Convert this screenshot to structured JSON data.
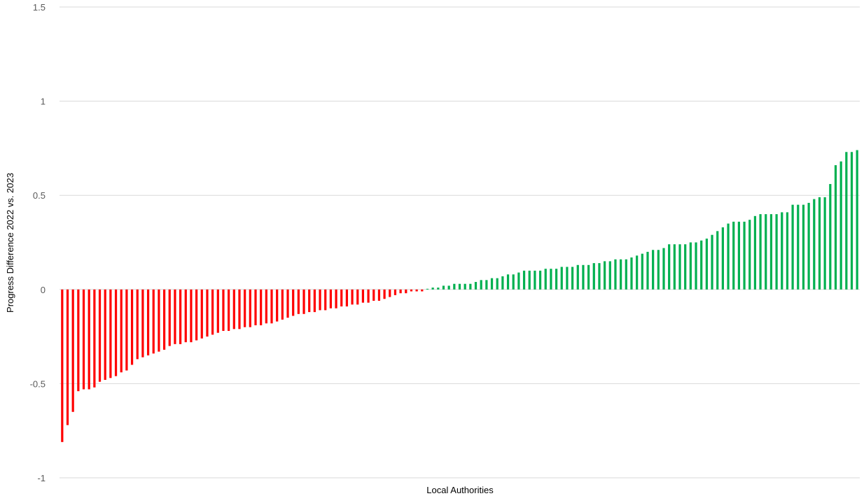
{
  "chart_data": {
    "type": "bar",
    "title": "",
    "xlabel": "Local Authorities",
    "ylabel": "Progress Difference 2022 vs. 2023",
    "ylim": [
      -1,
      1.5
    ],
    "yticks": [
      1.5,
      1,
      0.5,
      0,
      -0.5,
      -1
    ],
    "ytick_labels": [
      "1.5",
      "1",
      "0.5",
      "0",
      "-0.5",
      "-1"
    ],
    "grid": true,
    "legend": "none",
    "colors": {
      "negative": "#ff0000",
      "positive": "#00b050",
      "grid": "#d9d9d9"
    },
    "values": [
      -0.81,
      -0.72,
      -0.65,
      -0.54,
      -0.53,
      -0.53,
      -0.52,
      -0.49,
      -0.48,
      -0.47,
      -0.46,
      -0.44,
      -0.43,
      -0.4,
      -0.37,
      -0.36,
      -0.35,
      -0.34,
      -0.33,
      -0.32,
      -0.3,
      -0.29,
      -0.29,
      -0.28,
      -0.28,
      -0.27,
      -0.26,
      -0.25,
      -0.24,
      -0.23,
      -0.22,
      -0.22,
      -0.21,
      -0.21,
      -0.2,
      -0.2,
      -0.19,
      -0.19,
      -0.18,
      -0.18,
      -0.17,
      -0.16,
      -0.15,
      -0.14,
      -0.13,
      -0.13,
      -0.12,
      -0.12,
      -0.11,
      -0.11,
      -0.1,
      -0.1,
      -0.09,
      -0.09,
      -0.08,
      -0.08,
      -0.07,
      -0.07,
      -0.06,
      -0.06,
      -0.05,
      -0.04,
      -0.03,
      -0.02,
      -0.02,
      -0.01,
      -0.01,
      -0.01,
      0.0,
      0.01,
      0.01,
      0.02,
      0.02,
      0.03,
      0.03,
      0.03,
      0.03,
      0.04,
      0.05,
      0.05,
      0.06,
      0.06,
      0.07,
      0.08,
      0.08,
      0.09,
      0.1,
      0.1,
      0.1,
      0.1,
      0.11,
      0.11,
      0.11,
      0.12,
      0.12,
      0.12,
      0.13,
      0.13,
      0.13,
      0.14,
      0.14,
      0.15,
      0.15,
      0.16,
      0.16,
      0.16,
      0.17,
      0.18,
      0.19,
      0.2,
      0.21,
      0.21,
      0.22,
      0.24,
      0.24,
      0.24,
      0.24,
      0.25,
      0.25,
      0.26,
      0.27,
      0.29,
      0.31,
      0.33,
      0.35,
      0.36,
      0.36,
      0.36,
      0.37,
      0.39,
      0.4,
      0.4,
      0.4,
      0.4,
      0.41,
      0.41,
      0.45,
      0.45,
      0.45,
      0.46,
      0.48,
      0.49,
      0.49,
      0.56,
      0.66,
      0.68,
      0.73,
      0.73,
      0.74
    ]
  }
}
